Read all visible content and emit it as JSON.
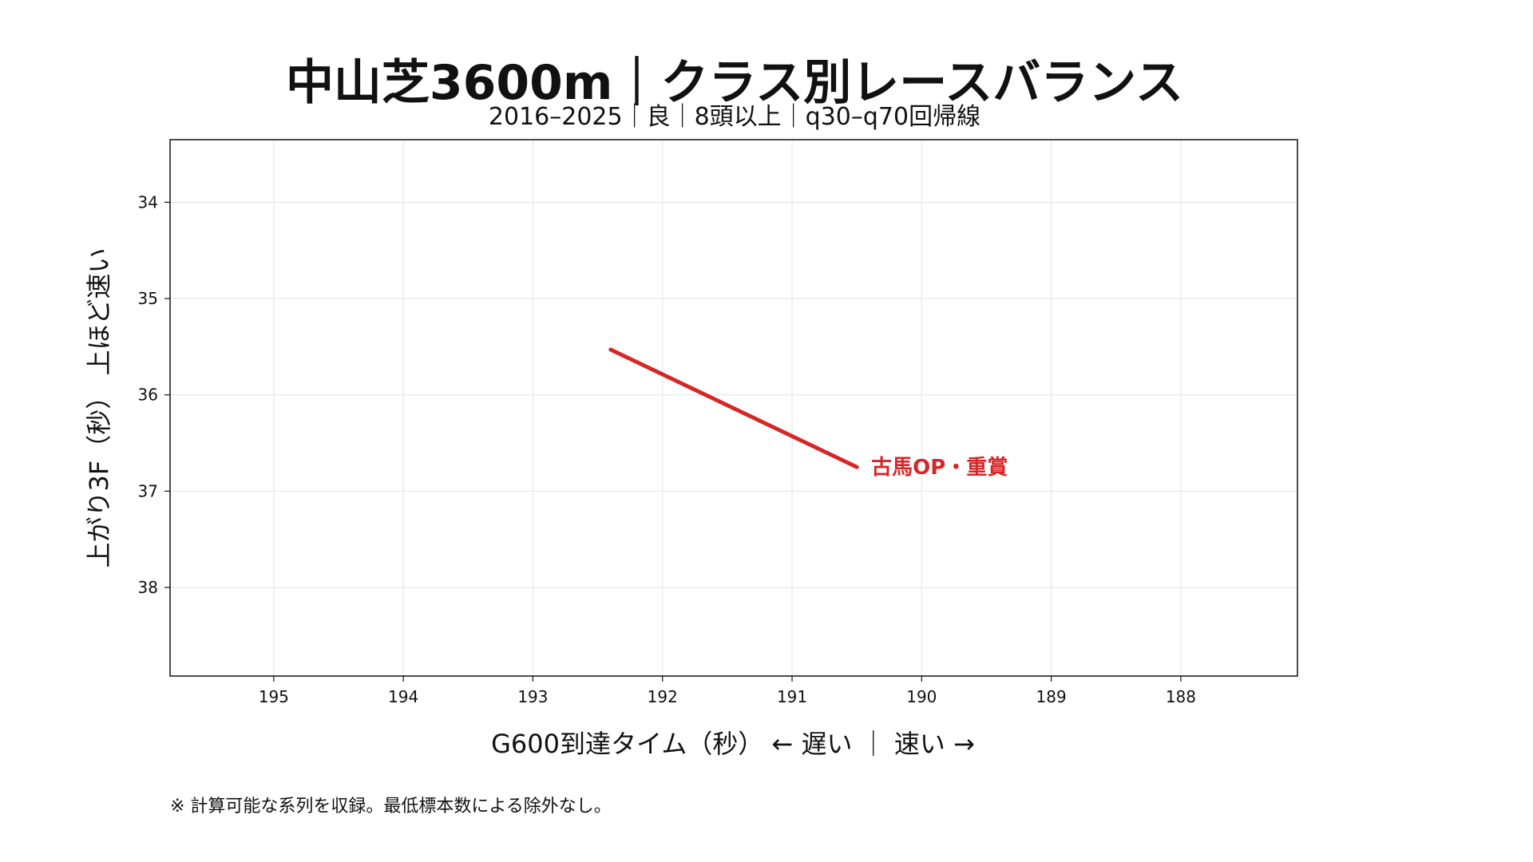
{
  "chart_data": {
    "type": "line",
    "title": "中山芝3600m｜クラス別レースバランス",
    "subtitle": "2016–2025｜良｜8頭以上｜q30–q70回帰線",
    "xlabel": "G600到達タイム（秒） ← 遅い ｜ 速い →",
    "ylabel": "上がり3F（秒） 上ほど速い",
    "footnote": "※ 計算可能な系列を収録。最低標本数による除外なし。",
    "xlim": [
      195.8,
      187.1
    ],
    "ylim": [
      38.92,
      33.35
    ],
    "x_inverted": true,
    "y_inverted": true,
    "x_ticks": [
      195,
      194,
      193,
      192,
      191,
      190,
      189,
      188
    ],
    "y_ticks": [
      34,
      35,
      36,
      37,
      38
    ],
    "grid": true,
    "series": [
      {
        "name": "古馬OP・重賞",
        "color": "#d62728",
        "x": [
          192.4,
          190.5
        ],
        "y": [
          35.53,
          36.75
        ]
      }
    ]
  }
}
